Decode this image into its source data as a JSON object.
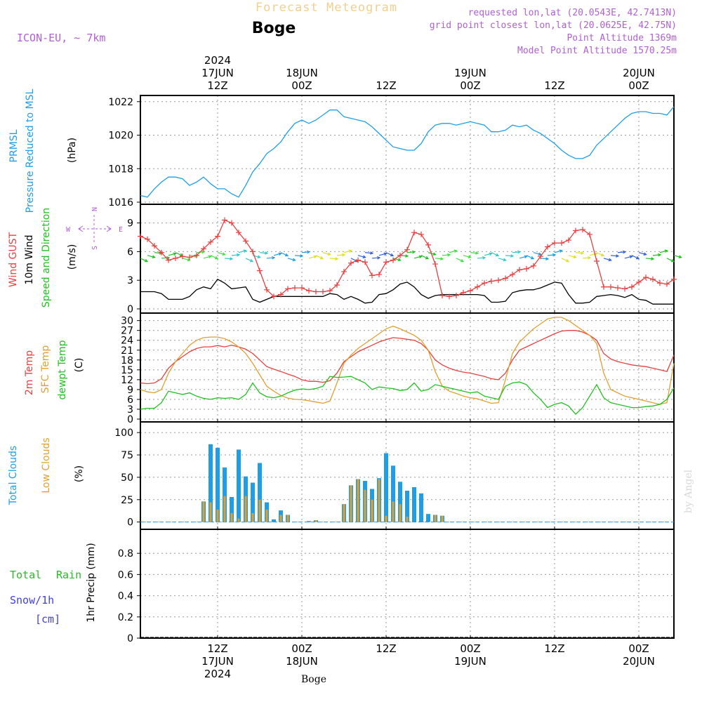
{
  "header": {
    "title": "Forecast Meteogram",
    "location": "Boge",
    "model": "ICON-EU, ~ 7km",
    "requested": "requested lon,lat (20.0543E, 42.7413N)",
    "grid_point": "grid point closest lon,lat (20.0625E, 42.75N)",
    "point_altitude": "Point Altitude 1369m",
    "model_altitude": "Model Point Altitude 1570.25m",
    "footer_location": "Boge",
    "credit": "by Angel"
  },
  "time_axis": {
    "top_labels": [
      {
        "hour": 12,
        "lines": [
          "2024",
          "17JUN",
          "12Z"
        ]
      },
      {
        "hour": 24,
        "lines": [
          "18JUN",
          "00Z"
        ]
      },
      {
        "hour": 36,
        "lines": [
          "12Z"
        ]
      },
      {
        "hour": 48,
        "lines": [
          "19JUN",
          "00Z"
        ]
      },
      {
        "hour": 60,
        "lines": [
          "12Z"
        ]
      },
      {
        "hour": 72,
        "lines": [
          "20JUN",
          "00Z"
        ]
      }
    ],
    "bottom_labels": [
      {
        "hour": 12,
        "lines": [
          "12Z",
          "17JUN",
          "2024"
        ]
      },
      {
        "hour": 24,
        "lines": [
          "00Z",
          "18JUN"
        ]
      },
      {
        "hour": 36,
        "lines": [
          "12Z"
        ]
      },
      {
        "hour": 48,
        "lines": [
          "00Z",
          "19JUN"
        ]
      },
      {
        "hour": 60,
        "lines": [
          "12Z"
        ]
      },
      {
        "hour": 72,
        "lines": [
          "00Z",
          "20JUN"
        ]
      }
    ]
  },
  "panels": {
    "pressure": {
      "labels": [
        "PRMSL",
        "Pressure Reduced to MSL"
      ],
      "unit": "(hPa)"
    },
    "wind": {
      "labels": [
        "Wind GUST",
        "10m Wind",
        "Speed and Direction"
      ],
      "unit": "(m/s)",
      "compass": {
        "n": "N",
        "s": "S",
        "w": "W",
        "e": "E"
      }
    },
    "temp": {
      "labels": [
        "2m Temp",
        "SFC Temp",
        "dewpt Temp"
      ],
      "unit": "(C)"
    },
    "clouds": {
      "labels": [
        "Total Clouds",
        "Low Clouds"
      ],
      "unit": "(%)"
    },
    "precip": {
      "labels": [
        "Total",
        "Rain",
        "Snow/1h",
        "[cm]"
      ],
      "axis_label": "1hr Precip (mm)"
    }
  },
  "colors": {
    "pressure": "#1e9ee6",
    "gust": "#e64040",
    "wind": "#000000",
    "temp2m": "#e64040",
    "sfc": "#e0a030",
    "dewpt": "#20c020",
    "total_clouds": "#1e9ee6",
    "low_clouds": "#e0a030",
    "rain": "#20c020",
    "snow": "#4040e0",
    "purple": "#b060d0",
    "title_faint": "#f0d090"
  },
  "chart_data": [
    {
      "type": "line",
      "name": "pressure",
      "ylim": [
        1016,
        1022.2
      ],
      "yticks": [
        1016,
        1018,
        1020,
        1022
      ],
      "x": [
        1,
        2,
        3,
        4,
        5,
        6,
        7,
        8,
        9,
        10,
        11,
        12,
        13,
        14,
        15,
        16,
        17,
        18,
        19,
        20,
        21,
        22,
        23,
        24,
        25,
        26,
        27,
        28,
        29,
        30,
        31,
        32,
        33,
        34,
        35,
        36,
        37,
        38,
        39,
        40,
        41,
        42,
        43,
        44,
        45,
        46,
        47,
        48,
        49,
        50,
        51,
        52,
        53,
        54,
        55,
        56,
        57,
        58,
        59,
        60,
        61,
        62,
        63,
        64,
        65,
        66,
        67,
        68,
        69,
        70,
        71,
        72,
        73,
        74,
        75,
        76,
        77
      ],
      "series": [
        {
          "name": "PRMSL",
          "values": [
            1016.4,
            1016.3,
            1016.8,
            1017.2,
            1017.5,
            1017.5,
            1017.4,
            1017.0,
            1017.2,
            1017.5,
            1017.1,
            1016.8,
            1016.8,
            1016.5,
            1016.3,
            1017.0,
            1017.8,
            1018.3,
            1018.9,
            1019.2,
            1019.6,
            1020.2,
            1020.7,
            1020.9,
            1020.7,
            1020.9,
            1021.2,
            1021.5,
            1021.5,
            1021.1,
            1021.0,
            1020.9,
            1020.8,
            1020.5,
            1020.1,
            1019.7,
            1019.3,
            1019.2,
            1019.1,
            1019.1,
            1019.5,
            1020.2,
            1020.6,
            1020.7,
            1020.7,
            1020.6,
            1020.7,
            1020.8,
            1020.7,
            1020.6,
            1020.2,
            1020.2,
            1020.3,
            1020.6,
            1020.5,
            1020.6,
            1020.3,
            1020.1,
            1019.8,
            1019.5,
            1019.1,
            1018.8,
            1018.6,
            1018.6,
            1018.8,
            1019.4,
            1019.8,
            1020.2,
            1020.6,
            1021.0,
            1021.3,
            1021.4,
            1021.4,
            1021.3,
            1021.3,
            1021.2,
            1021.7
          ]
        }
      ]
    },
    {
      "type": "line",
      "name": "wind",
      "ylim": [
        0,
        10
      ],
      "yticks": [
        0,
        3,
        6,
        9
      ],
      "x": [
        1,
        2,
        3,
        4,
        5,
        6,
        7,
        8,
        9,
        10,
        11,
        12,
        13,
        14,
        15,
        16,
        17,
        18,
        19,
        20,
        21,
        22,
        23,
        24,
        25,
        26,
        27,
        28,
        29,
        30,
        31,
        32,
        33,
        34,
        35,
        36,
        37,
        38,
        39,
        40,
        41,
        42,
        43,
        44,
        45,
        46,
        47,
        48,
        49,
        50,
        51,
        52,
        53,
        54,
        55,
        56,
        57,
        58,
        59,
        60,
        61,
        62,
        63,
        64,
        65,
        66,
        67,
        68,
        69,
        70,
        71,
        72,
        73,
        74,
        75,
        76,
        77
      ],
      "series": [
        {
          "name": "Wind GUST",
          "values": [
            7.6,
            7.3,
            6.6,
            5.9,
            5.1,
            5.3,
            5.5,
            5.4,
            5.6,
            6.3,
            7.0,
            7.6,
            9.3,
            9.0,
            8.0,
            7.1,
            6.0,
            4.0,
            2.0,
            1.3,
            1.5,
            2.1,
            2.2,
            2.2,
            1.9,
            1.8,
            1.8,
            1.9,
            2.5,
            3.9,
            4.8,
            5.1,
            4.9,
            3.5,
            3.6,
            4.9,
            5.1,
            5.6,
            6.2,
            8.0,
            7.8,
            6.7,
            4.7,
            1.4,
            1.3,
            1.4,
            1.7,
            1.9,
            2.3,
            2.7,
            2.9,
            3.0,
            3.2,
            3.6,
            4.1,
            4.2,
            4.5,
            5.5,
            6.5,
            6.9,
            6.9,
            7.2,
            8.2,
            8.3,
            7.8,
            5.0,
            2.3,
            2.3,
            2.2,
            2.1,
            2.3,
            2.8,
            3.3,
            3.1,
            2.7,
            2.6,
            3.1
          ]
        },
        {
          "name": "10m Wind",
          "values": [
            1.8,
            1.8,
            1.8,
            1.6,
            1.0,
            1.0,
            1.0,
            1.3,
            2.0,
            2.3,
            2.1,
            3.1,
            2.7,
            2.1,
            2.2,
            2.3,
            1.0,
            0.7,
            1.0,
            1.3,
            1.3,
            1.3,
            1.3,
            1.3,
            1.3,
            1.3,
            1.3,
            1.6,
            1.5,
            1.0,
            1.3,
            1.0,
            0.6,
            0.7,
            1.5,
            1.6,
            2.0,
            2.6,
            2.8,
            2.3,
            1.5,
            1.1,
            1.4,
            1.5,
            1.5,
            1.5,
            1.5,
            1.5,
            1.5,
            1.4,
            0.7,
            0.7,
            0.8,
            1.7,
            1.9,
            2.0,
            2.0,
            2.2,
            2.5,
            2.8,
            2.7,
            1.5,
            0.6,
            0.6,
            0.7,
            1.3,
            1.4,
            1.5,
            1.4,
            1.2,
            1.5,
            1.0,
            0.9,
            0.5,
            0.5,
            0.5,
            0.5
          ]
        }
      ]
    },
    {
      "type": "line",
      "name": "temperature",
      "ylim": [
        0,
        31
      ],
      "yticks": [
        0,
        3,
        6,
        9,
        12,
        15,
        18,
        21,
        24,
        27,
        30
      ],
      "x": [
        1,
        2,
        3,
        4,
        5,
        6,
        7,
        8,
        9,
        10,
        11,
        12,
        13,
        14,
        15,
        16,
        17,
        18,
        19,
        20,
        21,
        22,
        23,
        24,
        25,
        26,
        27,
        28,
        29,
        30,
        31,
        32,
        33,
        34,
        35,
        36,
        37,
        38,
        39,
        40,
        41,
        42,
        43,
        44,
        45,
        46,
        47,
        48,
        49,
        50,
        51,
        52,
        53,
        54,
        55,
        56,
        57,
        58,
        59,
        60,
        61,
        62,
        63,
        64,
        65,
        66,
        67,
        68,
        69,
        70,
        71,
        72,
        73,
        74,
        75,
        76,
        77
      ],
      "series": [
        {
          "name": "2m Temp",
          "values": [
            11.0,
            10.8,
            11.0,
            12.3,
            15.5,
            17.5,
            19.0,
            20.5,
            21.5,
            22.0,
            22.0,
            22.4,
            22.0,
            22.5,
            22.0,
            21.3,
            20.0,
            18.0,
            16.0,
            15.2,
            14.5,
            13.7,
            13.0,
            12.0,
            11.5,
            11.5,
            11.2,
            11.7,
            14.0,
            17.5,
            19.0,
            20.5,
            21.5,
            22.5,
            23.5,
            24.2,
            24.8,
            24.6,
            24.3,
            24.0,
            23.0,
            21.0,
            18.0,
            16.5,
            15.5,
            14.8,
            14.3,
            14.0,
            13.5,
            13.0,
            12.3,
            12.0,
            14.0,
            18.0,
            21.0,
            22.0,
            23.0,
            24.0,
            25.0,
            26.0,
            26.8,
            27.0,
            27.0,
            26.5,
            25.5,
            24.0,
            20.0,
            18.3,
            17.5,
            17.0,
            16.5,
            16.2,
            16.0,
            15.5,
            15.0,
            14.5,
            19.5
          ]
        },
        {
          "name": "SFC Temp",
          "values": [
            9.0,
            8.3,
            8.0,
            9.0,
            14.0,
            17.5,
            20.0,
            22.5,
            24.0,
            24.8,
            25.0,
            25.0,
            24.5,
            23.5,
            22.0,
            20.0,
            17.0,
            13.5,
            10.0,
            8.5,
            7.2,
            6.4,
            6.0,
            5.9,
            5.6,
            5.2,
            4.8,
            5.5,
            11.0,
            17.0,
            19.5,
            21.5,
            23.0,
            24.5,
            26.0,
            27.5,
            28.3,
            27.5,
            26.5,
            25.5,
            24.0,
            21.0,
            14.5,
            10.0,
            8.5,
            7.8,
            7.0,
            6.5,
            6.2,
            5.5,
            4.8,
            5.0,
            12.0,
            20.0,
            23.5,
            25.5,
            27.5,
            29.0,
            30.5,
            31.0,
            31.0,
            30.0,
            28.5,
            27.0,
            25.5,
            23.0,
            14.0,
            9.0,
            8.0,
            7.0,
            6.5,
            6.0,
            5.5,
            5.0,
            4.5,
            5.0,
            17.0
          ]
        },
        {
          "name": "dewpt Temp",
          "values": [
            3.0,
            3.3,
            3.3,
            5.0,
            8.5,
            8.0,
            7.5,
            8.0,
            7.0,
            6.3,
            6.0,
            6.5,
            6.3,
            6.5,
            6.0,
            7.5,
            11.0,
            8.0,
            6.8,
            6.5,
            7.0,
            8.0,
            8.8,
            9.2,
            9.0,
            9.3,
            10.0,
            13.0,
            12.7,
            12.8,
            13.0,
            12.0,
            11.0,
            9.0,
            9.8,
            9.5,
            9.3,
            8.7,
            9.0,
            11.0,
            8.5,
            9.0,
            10.5,
            10.0,
            9.5,
            9.0,
            8.5,
            8.0,
            8.3,
            7.0,
            6.5,
            6.0,
            10.0,
            11.0,
            11.3,
            10.5,
            8.0,
            6.0,
            3.5,
            4.5,
            5.0,
            4.0,
            1.5,
            3.5,
            7.0,
            10.5,
            6.5,
            5.0,
            4.5,
            4.0,
            3.5,
            3.5,
            3.8,
            4.0,
            4.5,
            6.0,
            9.5
          ]
        }
      ]
    },
    {
      "type": "bar",
      "name": "clouds",
      "ylim": [
        -5,
        108
      ],
      "yticks": [
        0,
        25,
        50,
        75,
        100
      ],
      "x": [
        1,
        2,
        3,
        4,
        5,
        6,
        7,
        8,
        9,
        10,
        11,
        12,
        13,
        14,
        15,
        16,
        17,
        18,
        19,
        20,
        21,
        22,
        23,
        24,
        25,
        26,
        27,
        28,
        29,
        30,
        31,
        32,
        33,
        34,
        35,
        36,
        37,
        38,
        39,
        40,
        41,
        42,
        43,
        44,
        45,
        46,
        47,
        48,
        49,
        50,
        51,
        52,
        53,
        54,
        55,
        56,
        57,
        58,
        59,
        60,
        61,
        62,
        63,
        64,
        65,
        66,
        67,
        68,
        69,
        70,
        71,
        72,
        73,
        74,
        75,
        76,
        77
      ],
      "series": [
        {
          "name": "Total Clouds",
          "values": [
            0,
            0,
            0,
            0,
            0,
            0,
            0,
            0,
            0,
            23,
            87,
            83,
            61,
            28,
            81,
            51,
            44,
            66,
            22,
            3,
            13,
            8,
            0,
            0,
            1,
            2,
            0,
            0,
            0,
            20,
            41,
            48,
            46,
            37,
            49,
            77,
            63,
            45,
            35,
            39,
            32,
            9,
            8,
            7,
            0,
            0,
            0,
            0,
            0,
            0,
            0,
            0,
            0,
            0,
            0,
            0,
            0,
            0,
            0,
            0,
            0,
            0,
            0,
            0,
            0,
            0,
            0,
            0,
            0,
            0,
            0,
            0,
            0,
            0,
            0,
            0,
            0
          ]
        },
        {
          "name": "Low Clouds",
          "values": [
            0,
            0,
            0,
            0,
            0,
            0,
            0,
            0,
            0,
            23,
            22,
            14,
            29,
            10,
            4,
            29,
            10,
            25,
            14,
            0,
            8,
            8,
            0,
            0,
            0,
            2,
            0,
            0,
            0,
            20,
            41,
            48,
            36,
            25,
            48,
            7,
            23,
            20,
            6,
            0,
            0,
            0,
            8,
            7,
            0,
            0,
            0,
            0,
            0,
            0,
            0,
            0,
            0,
            0,
            0,
            0,
            0,
            0,
            0,
            0,
            0,
            0,
            0,
            0,
            0,
            0,
            0,
            0,
            0,
            0,
            0,
            0,
            0,
            0,
            0,
            0,
            0
          ]
        }
      ]
    },
    {
      "type": "line",
      "name": "precipitation",
      "ylim": [
        0,
        1
      ],
      "yticks": [
        0,
        0.2,
        0.4,
        0.6,
        0.8
      ],
      "x": [
        1,
        77
      ],
      "series": [
        {
          "name": "Total Rain",
          "values": [
            0,
            0
          ]
        }
      ]
    }
  ]
}
